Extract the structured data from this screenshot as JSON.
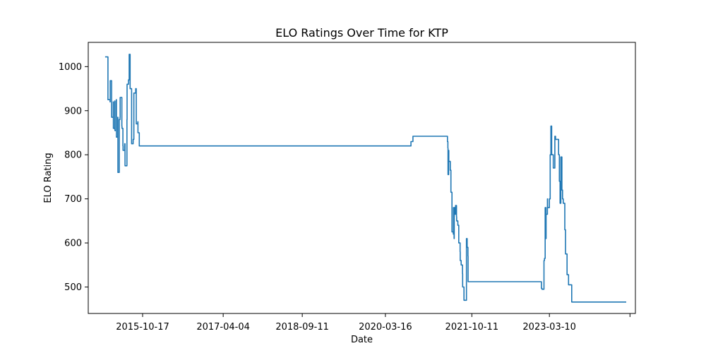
{
  "chart_data": {
    "type": "line",
    "title": "ELO Ratings Over Time for KTP",
    "xlabel": "Date",
    "ylabel": "ELO Rating",
    "x_ticks": [
      "2015-10-17",
      "2017-04-04",
      "2018-09-11",
      "2020-03-16",
      "2021-10-11",
      "2023-03-10"
    ],
    "y_ticks": [
      500,
      600,
      700,
      800,
      900,
      1000
    ],
    "xlim": [
      "2014-10-21",
      "2024-10-01"
    ],
    "ylim": [
      440,
      1055
    ],
    "grid": false,
    "legend": false,
    "colors": {
      "series": "#1f77b4"
    },
    "series": [
      {
        "x": [
          "2015-02-10",
          "2015-02-28",
          "2015-03-01",
          "2015-03-15",
          "2015-03-16",
          "2015-03-25",
          "2015-04-05",
          "2015-04-06",
          "2015-04-15",
          "2015-04-16",
          "2015-04-25",
          "2015-04-26",
          "2015-05-05",
          "2015-05-06",
          "2015-05-15",
          "2015-05-20",
          "2015-05-21",
          "2015-06-01",
          "2015-06-02",
          "2015-06-08",
          "2015-06-09",
          "2015-06-20",
          "2015-06-22",
          "2015-07-05",
          "2015-07-06",
          "2015-07-15",
          "2015-07-20",
          "2015-07-25",
          "2015-07-26",
          "2015-08-05",
          "2015-08-15",
          "2015-08-20",
          "2015-08-25",
          "2015-09-01",
          "2015-09-05",
          "2015-09-15",
          "2015-09-16",
          "2015-09-25",
          "2015-10-05",
          "2015-10-06",
          "2015-10-15",
          "2015-10-25",
          "2015-11-05",
          "2015-11-06",
          "2015-11-10",
          "2020-09-01",
          "2020-09-02",
          "2020-09-15",
          "2021-05-01",
          "2021-05-02",
          "2021-05-05",
          "2021-05-06",
          "2021-05-10",
          "2021-05-11",
          "2021-05-20",
          "2021-05-21",
          "2021-05-25",
          "2021-06-01",
          "2021-06-10",
          "2021-06-11",
          "2021-06-15",
          "2021-06-16",
          "2021-06-20",
          "2021-06-25",
          "2021-07-01",
          "2021-07-02",
          "2021-07-10",
          "2021-07-15",
          "2021-07-16",
          "2021-07-25",
          "2021-07-26",
          "2021-08-01",
          "2021-08-10",
          "2021-08-11",
          "2021-08-20",
          "2021-08-30",
          "2021-09-05",
          "2021-09-10",
          "2021-09-15",
          "2021-09-16",
          "2021-09-25",
          "2021-09-26",
          "2021-10-01",
          "2021-10-05",
          "2021-10-10",
          "2021-10-20",
          "2023-01-15",
          "2023-01-16",
          "2023-01-20",
          "2023-02-01",
          "2023-02-02",
          "2023-02-05",
          "2023-02-10",
          "2023-02-15",
          "2023-02-16",
          "2023-02-25",
          "2023-02-26",
          "2023-03-10",
          "2023-03-15",
          "2023-03-20",
          "2023-03-25",
          "2023-04-05",
          "2023-04-10",
          "2023-04-15",
          "2023-04-20",
          "2023-04-25",
          "2023-05-10",
          "2023-05-15",
          "2023-05-20",
          "2023-05-25",
          "2023-06-01",
          "2023-06-05",
          "2023-06-10",
          "2023-06-15",
          "2023-06-20",
          "2023-06-25",
          "2023-07-05",
          "2023-07-10",
          "2023-07-15",
          "2023-07-25",
          "2023-08-05",
          "2023-08-10",
          "2023-08-15",
          "2023-08-25",
          "2023-09-05",
          "2023-09-10",
          "2023-09-15",
          "2024-08-01"
        ],
        "y": [
          1022,
          1022,
          925,
          920,
          968,
          885,
          920,
          860,
          922,
          855,
          925,
          840,
          885,
          760,
          880,
          885,
          930,
          865,
          860,
          820,
          810,
          825,
          775,
          880,
          960,
          970,
          1028,
          1028,
          950,
          825,
          835,
          940,
          940,
          950,
          870,
          875,
          850,
          820,
          820,
          820,
          820,
          820,
          820,
          820,
          820,
          820,
          830,
          842,
          842,
          830,
          815,
          755,
          810,
          785,
          785,
          765,
          715,
          625,
          620,
          680,
          610,
          680,
          665,
          685,
          660,
          650,
          640,
          640,
          600,
          580,
          560,
          550,
          530,
          500,
          470,
          470,
          610,
          590,
          570,
          512,
          512,
          512,
          512,
          512,
          512,
          512,
          512,
          497,
          495,
          495,
          560,
          565,
          680,
          610,
          665,
          700,
          680,
          700,
          800,
          865,
          800,
          770,
          770,
          842,
          835,
          835,
          800,
          740,
          690,
          795,
          720,
          700,
          690,
          690,
          630,
          575,
          528,
          528,
          505,
          505,
          466,
          466,
          466,
          466,
          466,
          466,
          466,
          466
        ]
      }
    ]
  }
}
